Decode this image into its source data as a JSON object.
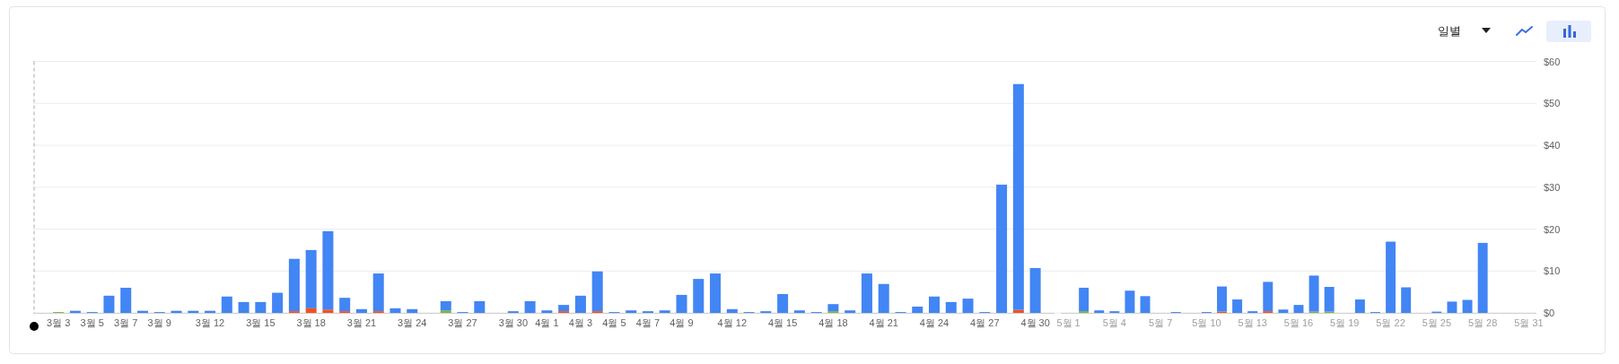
{
  "chart_data": [
    {
      "type": "bar",
      "stacked": true,
      "grid": "y",
      "tick_labels": "x",
      "categories": [
        null,
        "3월 3",
        null,
        "3월 5",
        null,
        "3월 7",
        null,
        "3월 9",
        null,
        null,
        "3월 12",
        null,
        null,
        "3월 15",
        null,
        null,
        "3월 18",
        null,
        null,
        "3월 21",
        null,
        null,
        "3월 24",
        null,
        null,
        "3월 27",
        null,
        null,
        "3월 30",
        null,
        "4월 1",
        null,
        "4월 3",
        null,
        "4월 5",
        null,
        "4월 7",
        null,
        "4월 9",
        null,
        null,
        "4월 12",
        null,
        null,
        "4월 15",
        null,
        null,
        "4월 18",
        null,
        null,
        "4월 21",
        null,
        null,
        "4월 24",
        null,
        null,
        "4월 27",
        null,
        null,
        "4월 30"
      ],
      "series": [
        {
          "color": "#f4511e",
          "values": [
            null,
            null,
            null,
            null,
            null,
            null,
            null,
            null,
            null,
            null,
            null,
            null,
            null,
            null,
            null,
            0.4,
            1.1,
            0.8,
            0.4,
            null,
            0.4,
            null,
            null,
            null,
            null,
            null,
            null,
            null,
            null,
            null,
            null,
            0.4,
            null,
            0.4,
            null,
            null,
            null,
            null,
            null,
            null,
            null,
            null,
            null,
            null,
            null,
            null,
            null,
            null,
            null,
            null,
            null,
            null,
            null,
            null,
            null,
            null,
            null,
            null,
            0.7,
            null
          ]
        },
        {
          "color": "#7cb342",
          "values": [
            null,
            0.2,
            null,
            null,
            null,
            null,
            null,
            null,
            null,
            null,
            null,
            null,
            null,
            null,
            null,
            null,
            null,
            null,
            null,
            null,
            null,
            null,
            null,
            null,
            0.6,
            null,
            null,
            null,
            null,
            null,
            null,
            null,
            null,
            null,
            null,
            null,
            null,
            null,
            null,
            null,
            null,
            null,
            null,
            null,
            null,
            null,
            null,
            0.4,
            null,
            null,
            null,
            null,
            null,
            null,
            null,
            null,
            null,
            null,
            null,
            null
          ]
        },
        {
          "color": "#4285f4",
          "values": [
            null,
            null,
            0.5,
            0.2,
            4.1,
            6.0,
            0.5,
            0.2,
            0.5,
            0.5,
            0.5,
            3.9,
            2.6,
            2.6,
            4.8,
            12.5,
            13.9,
            18.7,
            3.2,
            0.9,
            9.0,
            1.1,
            0.9,
            null,
            2.2,
            0.2,
            2.8,
            null,
            0.4,
            2.8,
            0.6,
            1.5,
            4.1,
            9.5,
            0.2,
            0.6,
            0.4,
            0.6,
            4.3,
            8.1,
            9.4,
            0.9,
            0.2,
            0.4,
            4.5,
            0.6,
            0.2,
            1.7,
            0.6,
            9.4,
            6.9,
            0.2,
            1.5,
            3.9,
            2.6,
            3.4,
            0.2,
            30.6,
            53.9,
            10.7
          ]
        }
      ],
      "ylim": [
        0,
        60
      ],
      "yticks": [
        0,
        10,
        20,
        30,
        40,
        50,
        60
      ]
    },
    {
      "type": "bar",
      "stacked": true,
      "grid": "y",
      "categories": [
        "5월 1",
        null,
        null,
        "5월 4",
        null,
        null,
        "5월 7",
        null,
        null,
        "5월 10",
        null,
        null,
        "5월 13",
        null,
        null,
        "5월 16",
        null,
        null,
        "5월 19",
        null,
        null,
        "5월 22",
        null,
        null,
        "5월 25",
        null,
        null,
        "5월 28",
        null,
        null,
        "5월 31"
      ],
      "series": [
        {
          "color": "#f4511e",
          "values": [
            null,
            null,
            null,
            null,
            null,
            null,
            null,
            null,
            null,
            null,
            0.3,
            null,
            null,
            0.4,
            null,
            null,
            null,
            null,
            null,
            null,
            null,
            null,
            null,
            null,
            null,
            null,
            null,
            null,
            null,
            null,
            null
          ]
        },
        {
          "color": "#7cb342",
          "values": [
            null,
            0.4,
            null,
            null,
            null,
            null,
            null,
            null,
            null,
            null,
            null,
            null,
            null,
            null,
            null,
            null,
            0.3,
            0.3,
            null,
            null,
            null,
            null,
            null,
            null,
            null,
            null,
            null,
            null,
            null,
            null,
            null
          ]
        },
        {
          "color": "#4285f4",
          "values": [
            null,
            5.6,
            0.6,
            0.4,
            5.3,
            4.0,
            null,
            0.2,
            null,
            0.2,
            6.0,
            3.2,
            0.4,
            7.0,
            0.8,
            1.9,
            8.6,
            5.9,
            null,
            3.2,
            0.2,
            17.0,
            6.1,
            null,
            0.3,
            2.7,
            3.1,
            16.7,
            null,
            null,
            null
          ]
        }
      ],
      "ylim": [
        0,
        60
      ],
      "yticks": [
        {
          "value": 0,
          "label": "$0"
        },
        {
          "value": 10,
          "label": "$10"
        },
        {
          "value": 20,
          "label": "$20"
        },
        {
          "value": 30,
          "label": "$30"
        },
        {
          "value": 40,
          "label": "$40"
        },
        {
          "value": 50,
          "label": "$50"
        },
        {
          "value": 60,
          "label": "$60"
        }
      ],
      "annotations": [
        "일별"
      ]
    }
  ]
}
